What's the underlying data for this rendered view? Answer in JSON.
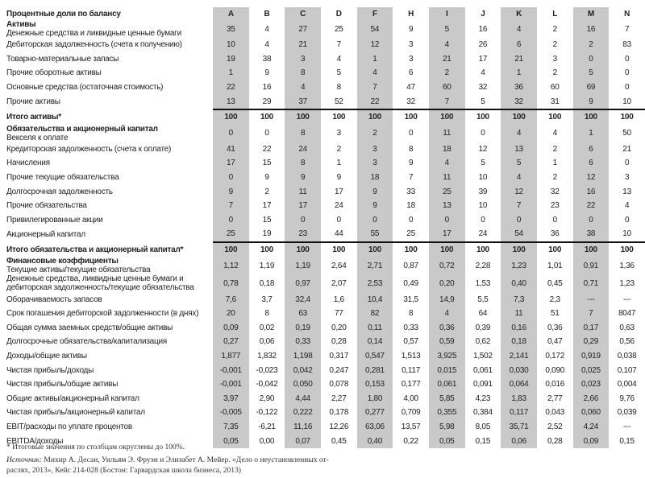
{
  "header_label": "Процентные доли по балансу",
  "columns": [
    "A",
    "B",
    "C",
    "D",
    "F",
    "H",
    "I",
    "J",
    "K",
    "L",
    "M",
    "N"
  ],
  "shaded_columns": [
    "A",
    "C",
    "F",
    "I",
    "K",
    "M"
  ],
  "colors": {
    "shade": "#c9c9c9",
    "rule": "#111111"
  },
  "rows": [
    {
      "section": "Активы",
      "label": "Денежные средства и ликвидные ценные бумаги",
      "values": [
        "35",
        "4",
        "27",
        "25",
        "54",
        "9",
        "5",
        "16",
        "4",
        "2",
        "16",
        "7"
      ]
    },
    {
      "label": "Дебиторская задолженность (счета к получению)",
      "values": [
        "10",
        "4",
        "21",
        "7",
        "12",
        "3",
        "4",
        "26",
        "6",
        "2",
        "2",
        "83"
      ]
    },
    {
      "label": "Товарно-материальные запасы",
      "values": [
        "19",
        "38",
        "3",
        "4",
        "1",
        "3",
        "21",
        "17",
        "21",
        "3",
        "0",
        "0"
      ]
    },
    {
      "label": "Прочие оборотные активы",
      "values": [
        "1",
        "9",
        "8",
        "5",
        "4",
        "6",
        "2",
        "4",
        "1",
        "2",
        "5",
        "0"
      ]
    },
    {
      "label": "Основные средства (остаточная стоимость)",
      "values": [
        "22",
        "16",
        "4",
        "8",
        "7",
        "47",
        "60",
        "32",
        "36",
        "60",
        "69",
        "0"
      ]
    },
    {
      "label": "Прочие активы",
      "values": [
        "13",
        "29",
        "37",
        "52",
        "22",
        "32",
        "7",
        "5",
        "32",
        "31",
        "9",
        "10"
      ]
    },
    {
      "total": true,
      "label": "Итого активы*",
      "values": [
        "100",
        "100",
        "100",
        "100",
        "100",
        "100",
        "100",
        "100",
        "100",
        "100",
        "100",
        "100"
      ]
    },
    {
      "section": "Обязательства и акционерный капитал",
      "label": "Векселя к оплате",
      "values": [
        "0",
        "0",
        "8",
        "3",
        "2",
        "0",
        "11",
        "0",
        "4",
        "4",
        "1",
        "50"
      ]
    },
    {
      "label": "Кредиторская задолженность (счета к оплате)",
      "values": [
        "41",
        "22",
        "24",
        "2",
        "3",
        "8",
        "18",
        "12",
        "13",
        "2",
        "6",
        "21"
      ]
    },
    {
      "label": "Начисления",
      "values": [
        "17",
        "15",
        "8",
        "1",
        "3",
        "9",
        "4",
        "5",
        "5",
        "1",
        "6",
        "0"
      ]
    },
    {
      "label": "Прочие текущие обязательства",
      "values": [
        "0",
        "9",
        "9",
        "9",
        "18",
        "7",
        "11",
        "10",
        "4",
        "2",
        "12",
        "3"
      ]
    },
    {
      "label": "Долгосрочная задолженность",
      "values": [
        "9",
        "2",
        "11",
        "17",
        "9",
        "33",
        "25",
        "39",
        "12",
        "32",
        "16",
        "13"
      ]
    },
    {
      "label": "Прочие обязательства",
      "values": [
        "7",
        "17",
        "17",
        "24",
        "9",
        "18",
        "13",
        "10",
        "7",
        "23",
        "22",
        "4"
      ]
    },
    {
      "label": "Привилегированные акции",
      "values": [
        "0",
        "15",
        "0",
        "0",
        "0",
        "0",
        "0",
        "0",
        "0",
        "0",
        "0",
        "0"
      ]
    },
    {
      "label": "Акционерный капитал",
      "values": [
        "25",
        "19",
        "23",
        "44",
        "55",
        "25",
        "17",
        "24",
        "54",
        "36",
        "38",
        "10"
      ]
    },
    {
      "total": true,
      "label": "Итого обязательства и акционерный капитал*",
      "values": [
        "100",
        "100",
        "100",
        "100",
        "100",
        "100",
        "100",
        "100",
        "100",
        "100",
        "100",
        "100"
      ]
    },
    {
      "section": "Финансовые коэффициенты",
      "label": "Текущие активы/текущие обязательства",
      "values": [
        "1,12",
        "1,19",
        "1,19",
        "2,64",
        "2,71",
        "0,87",
        "0,72",
        "2,28",
        "1,23",
        "1,01",
        "0,91",
        "1,36"
      ]
    },
    {
      "label": "Денежные средства, ликвидные ценные бумаги и",
      "label2": "дебиторская задолженность/текущие обязательства",
      "values": [
        "0,78",
        "0,18",
        "0,97",
        "2,07",
        "2,53",
        "0,49",
        "0,20",
        "1,53",
        "0,40",
        "0,45",
        "0,71",
        "1,23"
      ]
    },
    {
      "label": "Оборачиваемость запасов",
      "values": [
        "7,6",
        "3,7",
        "32,4",
        "1,6",
        "10,4",
        "31,5",
        "14,9",
        "5,5",
        "7,3",
        "2,3",
        "---",
        "---"
      ]
    },
    {
      "label": "Срок погашения дебиторской задолженности (в днях)",
      "values": [
        "20",
        "8",
        "63",
        "77",
        "82",
        "8",
        "4",
        "64",
        "11",
        "51",
        "7",
        "8047"
      ]
    },
    {
      "label": "Общая сумма заемных средств/общие активы",
      "values": [
        "0,09",
        "0,02",
        "0,19",
        "0,20",
        "0,11",
        "0,33",
        "0,36",
        "0,39",
        "0,16",
        "0,36",
        "0,17",
        "0,63"
      ]
    },
    {
      "label": "Долгосрочные обязательства/капитализация",
      "values": [
        "0,27",
        "0,06",
        "0,33",
        "0,28",
        "0,14",
        "0,57",
        "0,59",
        "0,62",
        "0,18",
        "0,47",
        "0,29",
        "0,56"
      ]
    },
    {
      "label": "Доходы/общие активы",
      "values": [
        "1,877",
        "1,832",
        "1,198",
        "0,317",
        "0,547",
        "1,513",
        "3,925",
        "1,502",
        "2,141",
        "0,172",
        "0,919",
        "0,038"
      ]
    },
    {
      "label": "Чистая прибыль/доходы",
      "values": [
        "-0,001",
        "-0,023",
        "0,042",
        "0,247",
        "0,281",
        "0,117",
        "0,015",
        "0,061",
        "0,030",
        "0,090",
        "0,025",
        "0,107"
      ]
    },
    {
      "label": "Чистая прибыль/общие активы",
      "values": [
        "-0,001",
        "-0,042",
        "0,050",
        "0,078",
        "0,153",
        "0,177",
        "0,061",
        "0,091",
        "0,064",
        "0,016",
        "0,023",
        "0,004"
      ]
    },
    {
      "label": "Общие активы/акционерный капитал",
      "values": [
        "3,97",
        "2,90",
        "4,44",
        "2,27",
        "1,80",
        "4,00",
        "5,85",
        "4,23",
        "1,83",
        "2,77",
        "2,66",
        "9,76"
      ]
    },
    {
      "label": "Чистая прибыль/акционерный капитал",
      "values": [
        "-0,005",
        "-0,122",
        "0,222",
        "0,178",
        "0,277",
        "0,709",
        "0,355",
        "0,384",
        "0,117",
        "0,043",
        "0,060",
        "0,039"
      ]
    },
    {
      "label": "EBIT/расходы по уплате процентов",
      "values": [
        "7,35",
        "-6,21",
        "11,16",
        "12,26",
        "63,06",
        "13,57",
        "5,98",
        "8,05",
        "35,71",
        "2,52",
        "4,24",
        "---"
      ]
    },
    {
      "label": "EBITDA/доходы",
      "values": [
        "0,05",
        "0,00",
        "0,07",
        "0,45",
        "0,40",
        "0,22",
        "0,05",
        "0,15",
        "0,06",
        "0,28",
        "0,09",
        "0,15"
      ]
    }
  ],
  "footnote": "* Итоговые значения по столбцам округлены до 100%.",
  "source_label": "Источник:",
  "source_line1": " Михир А. Десаи, Уильям Э. Фруэн и Элизабет А. Мейер. «Дело о неустановленных от-",
  "source_line2": "раслях, 2013», Кейс 214-028 (Бостон: Гарвардская школа бизнеса, 2013)"
}
